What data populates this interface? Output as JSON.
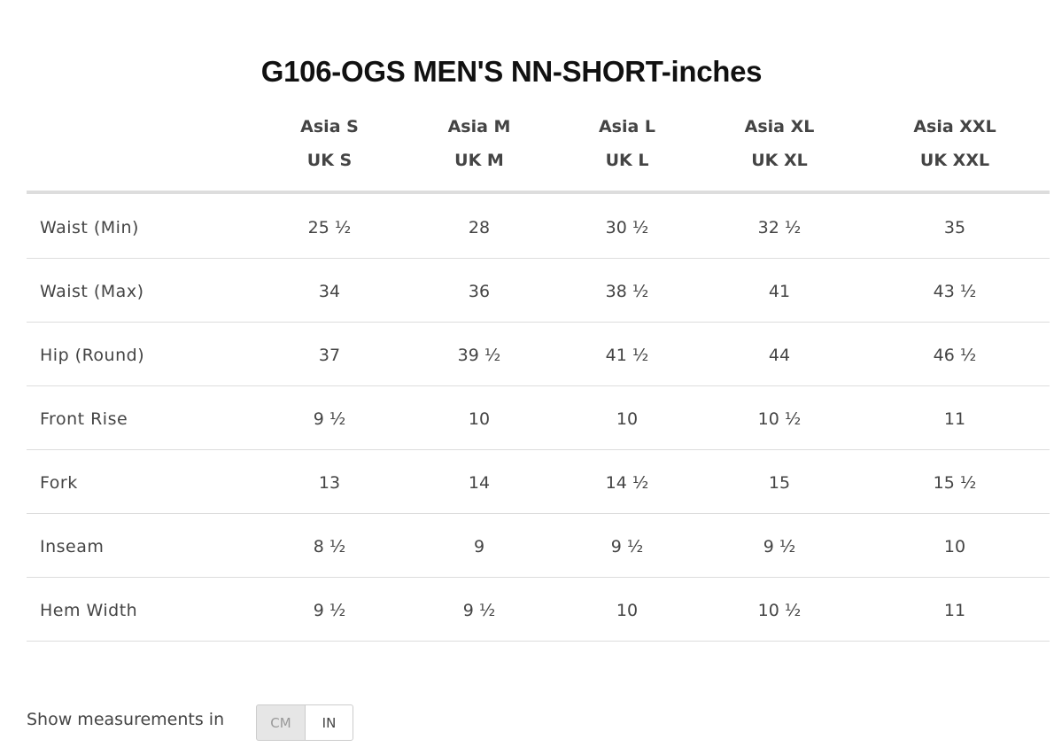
{
  "title": "G106-OGS MEN'S NN-SHORT-inches",
  "table": {
    "columns": [
      [
        "Asia S",
        "UK S"
      ],
      [
        "Asia M",
        "UK M"
      ],
      [
        "Asia L",
        "UK L"
      ],
      [
        "Asia XL",
        "UK XL"
      ],
      [
        "Asia XXL",
        "UK XXL"
      ]
    ],
    "rows": [
      {
        "label": "Waist (Min)",
        "values": [
          "25 ½",
          "28",
          "30 ½",
          "32 ½",
          "35"
        ]
      },
      {
        "label": "Waist (Max)",
        "values": [
          "34",
          "36",
          "38 ½",
          "41",
          "43 ½"
        ]
      },
      {
        "label": "Hip (Round)",
        "values": [
          "37",
          "39 ½",
          "41 ½",
          "44",
          "46 ½"
        ]
      },
      {
        "label": "Front Rise",
        "values": [
          "9 ½",
          "10",
          "10",
          "10 ½",
          "11"
        ]
      },
      {
        "label": "Fork",
        "values": [
          "13",
          "14",
          "14 ½",
          "15",
          "15 ½"
        ]
      },
      {
        "label": "Inseam",
        "values": [
          "8 ½",
          "9",
          "9 ½",
          "9 ½",
          "10"
        ]
      },
      {
        "label": "Hem Width",
        "values": [
          "9 ½",
          "9 ½",
          "10",
          "10 ½",
          "11"
        ]
      }
    ]
  },
  "footer": {
    "label": "Show measurements in",
    "options": [
      "CM",
      "IN"
    ]
  }
}
